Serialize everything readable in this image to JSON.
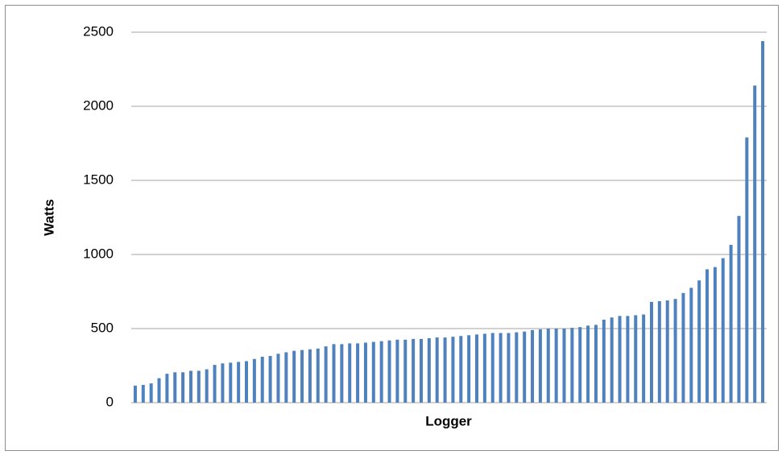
{
  "chart_data": {
    "type": "bar",
    "y_label": "Watts",
    "x_label": "Logger",
    "categories": [
      null,
      null,
      null,
      null,
      null,
      null,
      null,
      null,
      null,
      null,
      null,
      null,
      null,
      null,
      null,
      null,
      null,
      null,
      null,
      null,
      null,
      null,
      null,
      null,
      null,
      null,
      null,
      null,
      null,
      null,
      null,
      null,
      null,
      null,
      null,
      null,
      null,
      null,
      null,
      null,
      null,
      null,
      null,
      null,
      null,
      null,
      null,
      null,
      null,
      null,
      null,
      null,
      null,
      null,
      null,
      null,
      null,
      null,
      null,
      null,
      null,
      null,
      null,
      null,
      null,
      null,
      null,
      null,
      null,
      null,
      null,
      null,
      null,
      null,
      null,
      null,
      null,
      null,
      null,
      null
    ],
    "values": [
      115,
      120,
      130,
      165,
      195,
      205,
      205,
      215,
      215,
      225,
      255,
      265,
      270,
      275,
      280,
      295,
      310,
      315,
      330,
      340,
      350,
      355,
      360,
      365,
      380,
      395,
      395,
      400,
      400,
      405,
      410,
      415,
      420,
      425,
      425,
      430,
      430,
      435,
      440,
      440,
      445,
      450,
      455,
      460,
      465,
      470,
      470,
      470,
      475,
      480,
      490,
      495,
      500,
      500,
      500,
      505,
      510,
      520,
      525,
      560,
      575,
      585,
      585,
      590,
      595,
      680,
      685,
      690,
      700,
      740,
      775,
      825,
      900,
      915,
      975,
      1065,
      1260,
      1790,
      2140,
      2440
    ],
    "color": "#4f81bd",
    "ylim": [
      0,
      2500
    ],
    "yticks": [
      0,
      500,
      1000,
      1500,
      2000,
      2500
    ],
    "grid": true
  }
}
